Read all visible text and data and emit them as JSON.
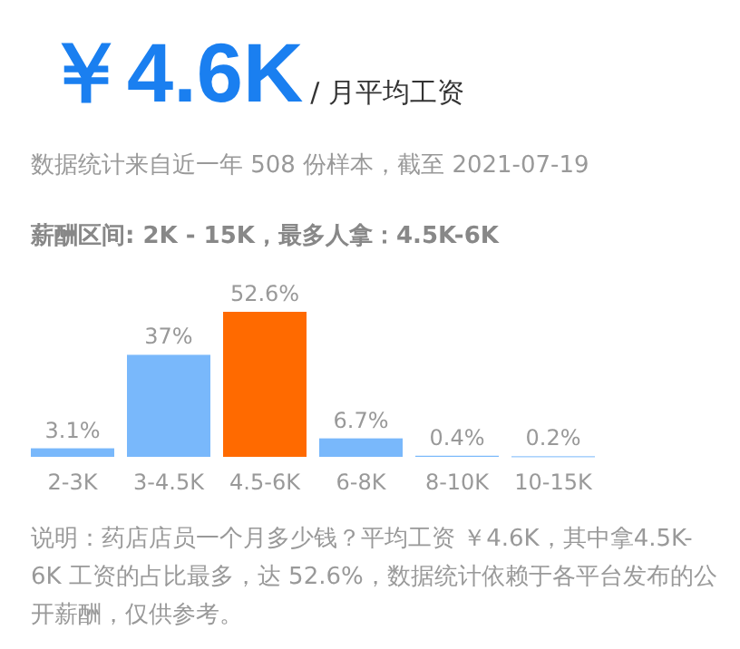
{
  "chart_data": {
    "type": "bar",
    "title": "￥4.6K",
    "subtitle": "/ 月平均工资",
    "annotations": [
      "数据统计来自近一年 508 份样本，截至 2021-07-19",
      "薪酬区间: 2K - 15K，最多人拿：4.5K-6K",
      "说明：药店店员一个月多少钱？平均工资 ￥4.6K，其中拿4.5K-6K 工资的占比最多，达 52.6%，数据统计依赖于各平台发布的公开薪酬，仅供参考。"
    ],
    "categories": [
      "2-3K",
      "3-4.5K",
      "4.5-6K",
      "6-8K",
      "8-10K",
      "10-15K"
    ],
    "values": [
      3.1,
      37,
      52.6,
      6.7,
      0.4,
      0.2
    ],
    "value_labels": [
      "3.1%",
      "37%",
      "52.6%",
      "6.7%",
      "0.4%",
      "0.2%"
    ],
    "colors": [
      "#79b8fb",
      "#79b8fb",
      "#ff6a00",
      "#79b8fb",
      "#79b8fb",
      "#79b8fb"
    ]
  }
}
